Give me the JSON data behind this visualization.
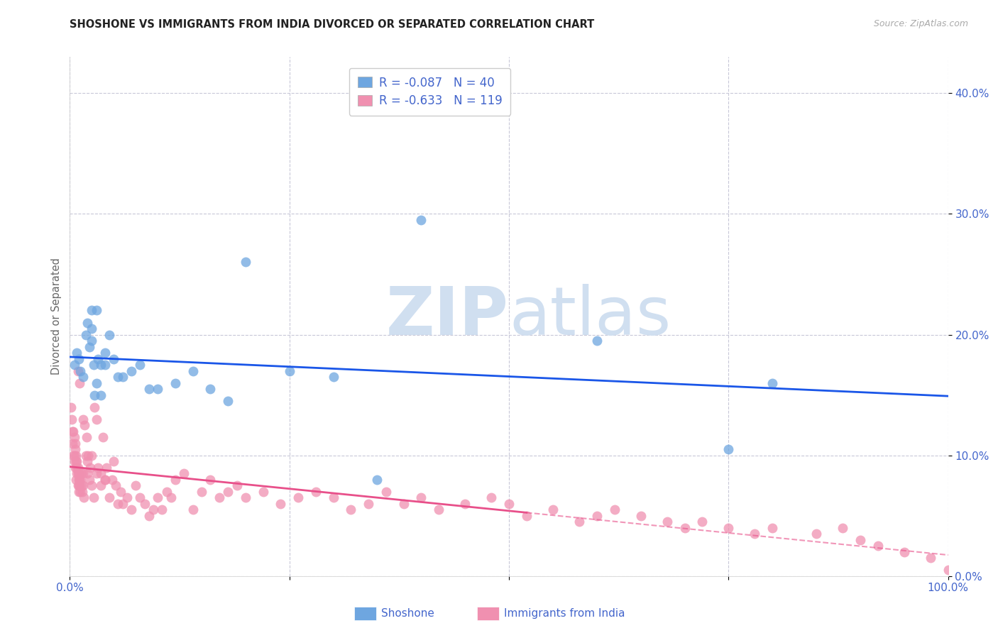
{
  "title": "SHOSHONE VS IMMIGRANTS FROM INDIA DIVORCED OR SEPARATED CORRELATION CHART",
  "source": "Source: ZipAtlas.com",
  "ylabel": "Divorced or Separated",
  "ytick_labels": [
    "0.0%",
    "10.0%",
    "20.0%",
    "30.0%",
    "40.0%"
  ],
  "ytick_values": [
    0.0,
    0.1,
    0.2,
    0.3,
    0.4
  ],
  "xlim": [
    0.0,
    1.0
  ],
  "ylim": [
    0.0,
    0.43
  ],
  "legend_shoshone_r": "R = -0.087",
  "legend_shoshone_n": "N = 40",
  "legend_india_r": "R = -0.633",
  "legend_india_n": "N = 119",
  "shoshone_color": "#6ea6e0",
  "india_color": "#f090b0",
  "trendline_shoshone_color": "#1a56e8",
  "trendline_india_color": "#e8508a",
  "background_color": "#ffffff",
  "grid_color": "#c8c8d8",
  "watermark_zip": "ZIP",
  "watermark_atlas": "atlas",
  "watermark_color": "#d0dff0",
  "axis_label_color": "#4466cc",
  "shoshone_x": [
    0.005,
    0.008,
    0.01,
    0.012,
    0.015,
    0.018,
    0.02,
    0.022,
    0.025,
    0.025,
    0.025,
    0.027,
    0.028,
    0.03,
    0.03,
    0.032,
    0.035,
    0.035,
    0.04,
    0.04,
    0.045,
    0.05,
    0.055,
    0.06,
    0.07,
    0.08,
    0.09,
    0.1,
    0.12,
    0.14,
    0.16,
    0.18,
    0.2,
    0.25,
    0.3,
    0.35,
    0.4,
    0.6,
    0.75,
    0.8
  ],
  "shoshone_y": [
    0.175,
    0.185,
    0.18,
    0.17,
    0.165,
    0.2,
    0.21,
    0.19,
    0.22,
    0.205,
    0.195,
    0.175,
    0.15,
    0.22,
    0.16,
    0.18,
    0.175,
    0.15,
    0.175,
    0.185,
    0.2,
    0.18,
    0.165,
    0.165,
    0.17,
    0.175,
    0.155,
    0.155,
    0.16,
    0.17,
    0.155,
    0.145,
    0.26,
    0.17,
    0.165,
    0.08,
    0.295,
    0.195,
    0.105,
    0.16
  ],
  "india_x": [
    0.001,
    0.002,
    0.003,
    0.003,
    0.004,
    0.004,
    0.005,
    0.005,
    0.005,
    0.006,
    0.006,
    0.006,
    0.007,
    0.007,
    0.007,
    0.008,
    0.008,
    0.008,
    0.009,
    0.009,
    0.009,
    0.01,
    0.01,
    0.01,
    0.01,
    0.011,
    0.011,
    0.012,
    0.012,
    0.013,
    0.013,
    0.014,
    0.015,
    0.015,
    0.016,
    0.017,
    0.018,
    0.019,
    0.02,
    0.02,
    0.021,
    0.022,
    0.023,
    0.025,
    0.025,
    0.027,
    0.028,
    0.03,
    0.03,
    0.032,
    0.035,
    0.035,
    0.038,
    0.04,
    0.04,
    0.042,
    0.045,
    0.048,
    0.05,
    0.052,
    0.055,
    0.058,
    0.06,
    0.065,
    0.07,
    0.075,
    0.08,
    0.085,
    0.09,
    0.095,
    0.1,
    0.105,
    0.11,
    0.115,
    0.12,
    0.13,
    0.14,
    0.15,
    0.16,
    0.17,
    0.18,
    0.19,
    0.2,
    0.22,
    0.24,
    0.26,
    0.28,
    0.3,
    0.32,
    0.34,
    0.36,
    0.38,
    0.4,
    0.42,
    0.45,
    0.48,
    0.5,
    0.52,
    0.55,
    0.58,
    0.6,
    0.62,
    0.65,
    0.68,
    0.7,
    0.72,
    0.75,
    0.78,
    0.8,
    0.85,
    0.88,
    0.9,
    0.92,
    0.95,
    0.98,
    1.0,
    0.009,
    0.011,
    0.015
  ],
  "india_y": [
    0.14,
    0.13,
    0.12,
    0.11,
    0.12,
    0.1,
    0.115,
    0.1,
    0.095,
    0.105,
    0.09,
    0.11,
    0.1,
    0.095,
    0.08,
    0.095,
    0.085,
    0.09,
    0.09,
    0.085,
    0.075,
    0.08,
    0.085,
    0.075,
    0.07,
    0.08,
    0.075,
    0.08,
    0.07,
    0.085,
    0.075,
    0.07,
    0.085,
    0.075,
    0.065,
    0.125,
    0.1,
    0.115,
    0.095,
    0.085,
    0.1,
    0.08,
    0.09,
    0.075,
    0.1,
    0.065,
    0.14,
    0.13,
    0.085,
    0.09,
    0.085,
    0.075,
    0.115,
    0.08,
    0.08,
    0.09,
    0.065,
    0.08,
    0.095,
    0.075,
    0.06,
    0.07,
    0.06,
    0.065,
    0.055,
    0.075,
    0.065,
    0.06,
    0.05,
    0.055,
    0.065,
    0.055,
    0.07,
    0.065,
    0.08,
    0.085,
    0.055,
    0.07,
    0.08,
    0.065,
    0.07,
    0.075,
    0.065,
    0.07,
    0.06,
    0.065,
    0.07,
    0.065,
    0.055,
    0.06,
    0.07,
    0.06,
    0.065,
    0.055,
    0.06,
    0.065,
    0.06,
    0.05,
    0.055,
    0.045,
    0.05,
    0.055,
    0.05,
    0.045,
    0.04,
    0.045,
    0.04,
    0.035,
    0.04,
    0.035,
    0.04,
    0.03,
    0.025,
    0.02,
    0.015,
    0.005,
    0.17,
    0.16,
    0.13
  ]
}
